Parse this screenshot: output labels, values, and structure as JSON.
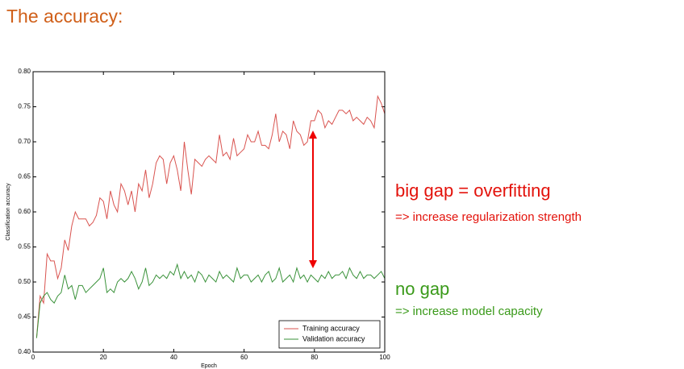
{
  "chart_data": {
    "type": "line",
    "title": "The accuracy:",
    "title_color": "#d0601a",
    "xlabel": "Epoch",
    "ylabel": "Classification accuracy",
    "x": [
      1,
      2,
      3,
      4,
      5,
      6,
      7,
      8,
      9,
      10,
      11,
      12,
      13,
      14,
      15,
      16,
      17,
      18,
      19,
      20,
      21,
      22,
      23,
      24,
      25,
      26,
      27,
      28,
      29,
      30,
      31,
      32,
      33,
      34,
      35,
      36,
      37,
      38,
      39,
      40,
      41,
      42,
      43,
      44,
      45,
      46,
      47,
      48,
      49,
      50,
      51,
      52,
      53,
      54,
      55,
      56,
      57,
      58,
      59,
      60,
      61,
      62,
      63,
      64,
      65,
      66,
      67,
      68,
      69,
      70,
      71,
      72,
      73,
      74,
      75,
      76,
      77,
      78,
      79,
      80,
      81,
      82,
      83,
      84,
      85,
      86,
      87,
      88,
      89,
      90,
      91,
      92,
      93,
      94,
      95,
      96,
      97,
      98,
      99,
      100
    ],
    "series": [
      {
        "name": "Training accuracy",
        "color": "#d9534f",
        "values": [
          0.42,
          0.48,
          0.47,
          0.54,
          0.53,
          0.53,
          0.505,
          0.52,
          0.56,
          0.545,
          0.58,
          0.6,
          0.59,
          0.59,
          0.59,
          0.58,
          0.585,
          0.595,
          0.62,
          0.615,
          0.59,
          0.63,
          0.61,
          0.6,
          0.64,
          0.63,
          0.61,
          0.63,
          0.6,
          0.64,
          0.63,
          0.66,
          0.62,
          0.64,
          0.67,
          0.68,
          0.675,
          0.64,
          0.67,
          0.68,
          0.66,
          0.63,
          0.7,
          0.66,
          0.625,
          0.675,
          0.67,
          0.665,
          0.675,
          0.68,
          0.675,
          0.67,
          0.71,
          0.68,
          0.685,
          0.675,
          0.705,
          0.68,
          0.685,
          0.69,
          0.71,
          0.7,
          0.7,
          0.715,
          0.695,
          0.695,
          0.69,
          0.71,
          0.74,
          0.7,
          0.715,
          0.71,
          0.69,
          0.73,
          0.715,
          0.71,
          0.695,
          0.7,
          0.73,
          0.73,
          0.745,
          0.74,
          0.72,
          0.73,
          0.725,
          0.735,
          0.745,
          0.745,
          0.74,
          0.745,
          0.73,
          0.735,
          0.73,
          0.725,
          0.735,
          0.73,
          0.72,
          0.765,
          0.755,
          0.74
        ]
      },
      {
        "name": "Validation accuracy",
        "color": "#3a923a",
        "values": [
          0.42,
          0.47,
          0.48,
          0.485,
          0.475,
          0.47,
          0.48,
          0.485,
          0.51,
          0.49,
          0.495,
          0.475,
          0.495,
          0.495,
          0.485,
          0.49,
          0.495,
          0.5,
          0.505,
          0.52,
          0.485,
          0.49,
          0.485,
          0.5,
          0.505,
          0.5,
          0.505,
          0.515,
          0.505,
          0.49,
          0.5,
          0.52,
          0.495,
          0.5,
          0.51,
          0.505,
          0.51,
          0.505,
          0.515,
          0.51,
          0.525,
          0.505,
          0.515,
          0.505,
          0.51,
          0.5,
          0.515,
          0.51,
          0.5,
          0.51,
          0.505,
          0.5,
          0.515,
          0.505,
          0.51,
          0.505,
          0.5,
          0.52,
          0.505,
          0.51,
          0.51,
          0.5,
          0.505,
          0.51,
          0.5,
          0.51,
          0.515,
          0.5,
          0.505,
          0.52,
          0.5,
          0.505,
          0.51,
          0.5,
          0.52,
          0.505,
          0.51,
          0.5,
          0.51,
          0.505,
          0.5,
          0.51,
          0.505,
          0.515,
          0.505,
          0.51,
          0.51,
          0.515,
          0.505,
          0.52,
          0.51,
          0.505,
          0.515,
          0.505,
          0.51,
          0.51,
          0.505,
          0.51,
          0.515,
          0.505
        ]
      }
    ],
    "xlim": [
      0,
      100
    ],
    "xticks": [
      0,
      20,
      40,
      60,
      80,
      100
    ],
    "ylim": [
      0.4,
      0.8
    ],
    "yticks": [
      {
        "value": 0.4,
        "label": "0.40"
      },
      {
        "value": 0.45,
        "label": "0.45"
      },
      {
        "value": 0.5,
        "label": "0.50"
      },
      {
        "value": 0.55,
        "label": "0.55"
      },
      {
        "value": 0.6,
        "label": "0.60"
      },
      {
        "value": 0.65,
        "label": "0.65"
      },
      {
        "value": 0.7,
        "label": "0.70"
      },
      {
        "value": 0.75,
        "label": "0.75"
      },
      {
        "value": 0.8,
        "label": "0.80"
      }
    ],
    "legend": "lower right",
    "annotations": [
      {
        "text": "big gap = overfitting",
        "color": "#e3120b"
      },
      {
        "text": "=> increase regularization strength",
        "color": "#e3120b"
      },
      {
        "text": "no gap",
        "color": "#3a9a1a"
      },
      {
        "text": "=> increase model capacity",
        "color": "#3a9a1a"
      }
    ]
  }
}
